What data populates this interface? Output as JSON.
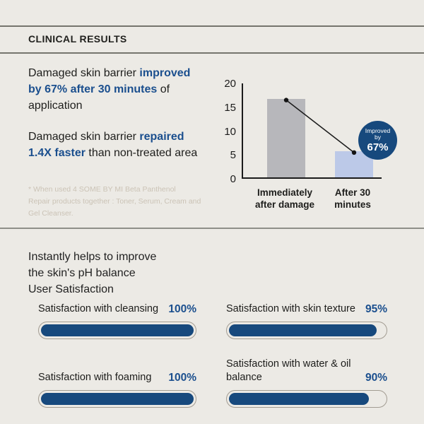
{
  "theme": {
    "background": "#ECEAE5",
    "accent_blue": "#17497D",
    "blue_text": "#1B4F8E",
    "bar_gray": "#B7B7BB",
    "bar_light_blue": "#BCC9E8",
    "divider_gray": "#8F8F89",
    "footnote_gray": "#CBC3B6"
  },
  "header": {
    "title": "CLINICAL RESULTS"
  },
  "claims": [
    {
      "lines": [
        [
          {
            "t": "Damaged skin barrier "
          },
          {
            "t": "improved",
            "em": true
          }
        ],
        [
          {
            "t": "by 67% after 30 minutes",
            "em": true
          },
          {
            "t": " of"
          }
        ],
        [
          {
            "t": "application"
          }
        ]
      ]
    },
    {
      "lines": [
        [
          {
            "t": "Damaged skin barrier "
          },
          {
            "t": "repaired",
            "em": true
          }
        ],
        [
          {
            "t": "1.4X faster",
            "em": true
          },
          {
            "t": " than non-treated area"
          }
        ]
      ]
    }
  ],
  "footnote": "* When used 4 SOME BY MI Beta Panthenol\nRepair products together : Toner, Serum, Cream and\nGel Cleanser.",
  "chart_data": {
    "type": "bar",
    "categories": [
      "Immediately\nafter damage",
      "After 30\nminutes"
    ],
    "values": [
      16.5,
      5.5
    ],
    "bar_colors": [
      "#B7B7BB",
      "#BCC9E8"
    ],
    "ylim": [
      0,
      20
    ],
    "yticks": [
      0,
      5,
      10,
      15,
      20
    ],
    "grid": false,
    "overlay": "line connecting bar tops with end dots",
    "annotation": {
      "line1": "Improved",
      "line2": "by",
      "value": "67%"
    }
  },
  "satisfaction": {
    "heading": "Instantly helps to improve\nthe skin's pH balance\nUser Satisfaction",
    "items": [
      {
        "label": "Satisfaction with cleansing",
        "value": 100,
        "display": "100%"
      },
      {
        "label": "Satisfaction with skin texture",
        "value": 95,
        "display": "95%"
      },
      {
        "label": "Satisfaction with foaming",
        "value": 100,
        "display": "100%"
      },
      {
        "label": "Satisfaction with water & oil balance",
        "value": 90,
        "display": "90%"
      }
    ]
  }
}
